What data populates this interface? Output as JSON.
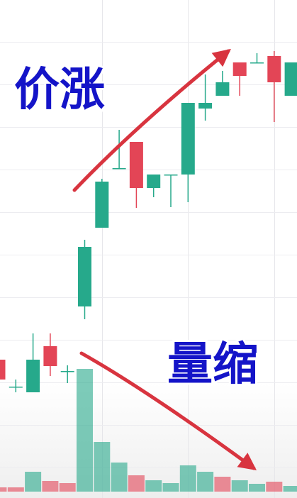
{
  "chart_data": {
    "type": "candlestick",
    "annotations": [
      "价涨",
      "量缩"
    ],
    "up_color": "#26a98b",
    "down_color": "#e34556",
    "open": [
      195,
      157,
      149,
      214,
      179,
      270,
      381,
      465,
      502,
      437,
      456,
      456,
      549,
      567,
      614,
      614,
      623,
      567
    ],
    "high": [
      200,
      167,
      232,
      232,
      187,
      364,
      450,
      519,
      502,
      456,
      456,
      557,
      597,
      602,
      614,
      627,
      630,
      614
    ],
    "low": [
      160,
      149,
      149,
      172,
      162,
      252,
      381,
      464,
      409,
      424,
      410,
      417,
      532,
      567,
      567,
      614,
      530,
      567
    ],
    "close": [
      167,
      157,
      195,
      186,
      179,
      354,
      446,
      465,
      437,
      456,
      456,
      557,
      557,
      586,
      595,
      614,
      586,
      614
    ],
    "volume": [
      6,
      6,
      28,
      15,
      12,
      173,
      70,
      41,
      23,
      16,
      12,
      37,
      28,
      21,
      16,
      11,
      14,
      8
    ],
    "volume_colors": [
      "#e34556",
      "#e34556",
      "#26a98b",
      "#e34556",
      "#e34556",
      "#26a98b",
      "#26a98b",
      "#26a98b",
      "#e34556",
      "#26a98b",
      "#26a98b",
      "#26a98b",
      "#26a98b",
      "#e34556",
      "#26a98b",
      "#26a98b",
      "#e34556",
      "#26a98b"
    ],
    "ylim": [
      0,
      702
    ],
    "y2lim": [
      0,
      693
    ]
  }
}
